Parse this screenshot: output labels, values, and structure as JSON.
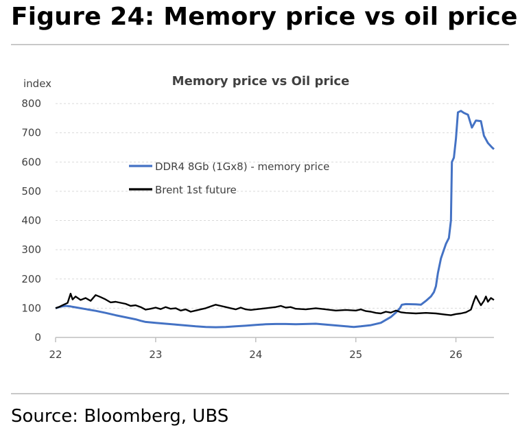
{
  "figure": {
    "title": "Figure 24: Memory price vs oil price",
    "source": "Source: Bloomberg, UBS"
  },
  "colors": {
    "memory_series": "#4472C4",
    "oil_series": "#000000",
    "grid": "#d9d9d9",
    "axis": "#bfbfbf"
  },
  "chart_data": {
    "type": "line",
    "title": "Memory price vs Oil price",
    "ylabel": "index",
    "xlabel": "",
    "ylim": [
      0,
      800
    ],
    "xlim": [
      2022,
      2026.38
    ],
    "y_ticks": [
      0,
      100,
      200,
      300,
      400,
      500,
      600,
      700,
      800
    ],
    "x_ticks": [
      {
        "value": 2022,
        "label": "22"
      },
      {
        "value": 2023,
        "label": "23"
      },
      {
        "value": 2024,
        "label": "24"
      },
      {
        "value": 2025,
        "label": "25"
      },
      {
        "value": 2026,
        "label": "26"
      }
    ],
    "grid": "horizontal",
    "legend_position": "center-left",
    "series": [
      {
        "name": "DDR4 8Gb (1Gx8) - memory price",
        "color": "#4472C4",
        "points": [
          [
            2022.0,
            100
          ],
          [
            2022.05,
            105
          ],
          [
            2022.1,
            108
          ],
          [
            2022.15,
            106
          ],
          [
            2022.2,
            103
          ],
          [
            2022.3,
            97
          ],
          [
            2022.4,
            91
          ],
          [
            2022.5,
            84
          ],
          [
            2022.6,
            76
          ],
          [
            2022.7,
            69
          ],
          [
            2022.8,
            62
          ],
          [
            2022.85,
            57
          ],
          [
            2022.9,
            53
          ],
          [
            2023.0,
            50
          ],
          [
            2023.1,
            47
          ],
          [
            2023.2,
            44
          ],
          [
            2023.3,
            41
          ],
          [
            2023.4,
            38
          ],
          [
            2023.5,
            36
          ],
          [
            2023.6,
            35
          ],
          [
            2023.7,
            36
          ],
          [
            2023.8,
            38
          ],
          [
            2023.9,
            40
          ],
          [
            2024.0,
            43
          ],
          [
            2024.1,
            45
          ],
          [
            2024.2,
            46
          ],
          [
            2024.3,
            46
          ],
          [
            2024.4,
            45
          ],
          [
            2024.5,
            46
          ],
          [
            2024.6,
            47
          ],
          [
            2024.7,
            44
          ],
          [
            2024.8,
            41
          ],
          [
            2024.9,
            38
          ],
          [
            2024.98,
            36
          ],
          [
            2025.05,
            38
          ],
          [
            2025.15,
            42
          ],
          [
            2025.25,
            50
          ],
          [
            2025.3,
            60
          ],
          [
            2025.35,
            70
          ],
          [
            2025.4,
            85
          ],
          [
            2025.44,
            100
          ],
          [
            2025.46,
            112
          ],
          [
            2025.5,
            114
          ],
          [
            2025.6,
            113
          ],
          [
            2025.65,
            112
          ],
          [
            2025.7,
            125
          ],
          [
            2025.75,
            140
          ],
          [
            2025.78,
            155
          ],
          [
            2025.8,
            175
          ],
          [
            2025.82,
            220
          ],
          [
            2025.85,
            270
          ],
          [
            2025.87,
            290
          ],
          [
            2025.9,
            320
          ],
          [
            2025.93,
            340
          ],
          [
            2025.95,
            400
          ],
          [
            2025.96,
            600
          ],
          [
            2025.98,
            615
          ],
          [
            2026.0,
            680
          ],
          [
            2026.02,
            770
          ],
          [
            2026.05,
            775
          ],
          [
            2026.08,
            768
          ],
          [
            2026.12,
            762
          ],
          [
            2026.16,
            718
          ],
          [
            2026.2,
            742
          ],
          [
            2026.25,
            740
          ],
          [
            2026.28,
            690
          ],
          [
            2026.32,
            665
          ],
          [
            2026.36,
            650
          ],
          [
            2026.38,
            644
          ]
        ]
      },
      {
        "name": "Brent 1st future",
        "color": "#000000",
        "points": [
          [
            2022.0,
            100
          ],
          [
            2022.04,
            105
          ],
          [
            2022.08,
            112
          ],
          [
            2022.12,
            118
          ],
          [
            2022.15,
            150
          ],
          [
            2022.17,
            130
          ],
          [
            2022.2,
            140
          ],
          [
            2022.25,
            128
          ],
          [
            2022.3,
            135
          ],
          [
            2022.35,
            125
          ],
          [
            2022.4,
            145
          ],
          [
            2022.45,
            138
          ],
          [
            2022.5,
            130
          ],
          [
            2022.55,
            120
          ],
          [
            2022.6,
            122
          ],
          [
            2022.7,
            115
          ],
          [
            2022.75,
            108
          ],
          [
            2022.8,
            110
          ],
          [
            2022.85,
            104
          ],
          [
            2022.9,
            95
          ],
          [
            2022.95,
            98
          ],
          [
            2023.0,
            102
          ],
          [
            2023.05,
            97
          ],
          [
            2023.1,
            104
          ],
          [
            2023.15,
            98
          ],
          [
            2023.2,
            100
          ],
          [
            2023.25,
            92
          ],
          [
            2023.3,
            96
          ],
          [
            2023.35,
            88
          ],
          [
            2023.4,
            92
          ],
          [
            2023.45,
            96
          ],
          [
            2023.5,
            100
          ],
          [
            2023.55,
            106
          ],
          [
            2023.6,
            112
          ],
          [
            2023.65,
            108
          ],
          [
            2023.7,
            104
          ],
          [
            2023.75,
            100
          ],
          [
            2023.8,
            96
          ],
          [
            2023.85,
            102
          ],
          [
            2023.9,
            96
          ],
          [
            2023.95,
            94
          ],
          [
            2024.0,
            96
          ],
          [
            2024.1,
            100
          ],
          [
            2024.2,
            104
          ],
          [
            2024.25,
            108
          ],
          [
            2024.3,
            102
          ],
          [
            2024.35,
            104
          ],
          [
            2024.4,
            98
          ],
          [
            2024.5,
            96
          ],
          [
            2024.6,
            100
          ],
          [
            2024.7,
            96
          ],
          [
            2024.8,
            92
          ],
          [
            2024.9,
            94
          ],
          [
            2025.0,
            92
          ],
          [
            2025.05,
            96
          ],
          [
            2025.1,
            90
          ],
          [
            2025.15,
            88
          ],
          [
            2025.2,
            84
          ],
          [
            2025.25,
            82
          ],
          [
            2025.3,
            88
          ],
          [
            2025.35,
            85
          ],
          [
            2025.4,
            92
          ],
          [
            2025.45,
            86
          ],
          [
            2025.5,
            84
          ],
          [
            2025.6,
            82
          ],
          [
            2025.7,
            84
          ],
          [
            2025.8,
            82
          ],
          [
            2025.9,
            78
          ],
          [
            2025.95,
            76
          ],
          [
            2026.0,
            80
          ],
          [
            2026.05,
            82
          ],
          [
            2026.1,
            86
          ],
          [
            2026.15,
            95
          ],
          [
            2026.18,
            125
          ],
          [
            2026.2,
            142
          ],
          [
            2026.22,
            128
          ],
          [
            2026.25,
            110
          ],
          [
            2026.28,
            125
          ],
          [
            2026.3,
            140
          ],
          [
            2026.32,
            122
          ],
          [
            2026.35,
            135
          ],
          [
            2026.38,
            128
          ]
        ]
      }
    ]
  }
}
